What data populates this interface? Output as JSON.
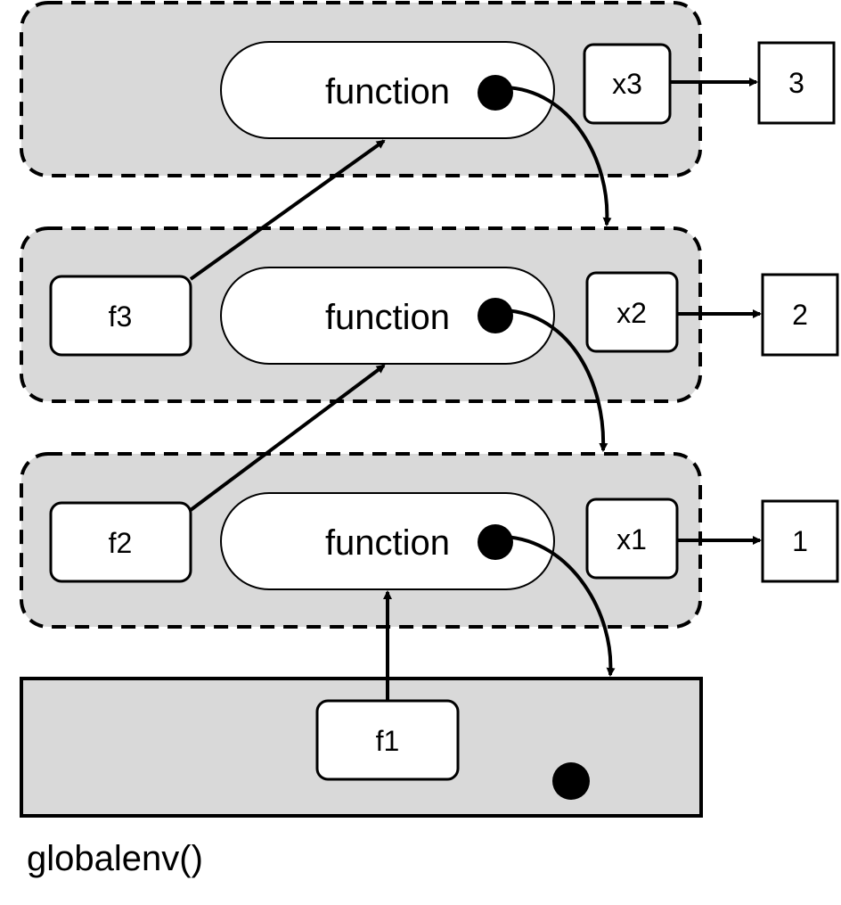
{
  "colors": {
    "env_fill": "#d9d9d9",
    "box_fill": "#ffffff",
    "stroke": "#000000"
  },
  "environments": [
    {
      "function_label": "function",
      "binding_name": "x3",
      "binding_value": "3"
    },
    {
      "name_label": "f3",
      "function_label": "function",
      "binding_name": "x2",
      "binding_value": "2"
    },
    {
      "name_label": "f2",
      "function_label": "function",
      "binding_name": "x1",
      "binding_value": "1"
    }
  ],
  "global_env": {
    "name_label": "f1",
    "caption": "globalenv()"
  }
}
